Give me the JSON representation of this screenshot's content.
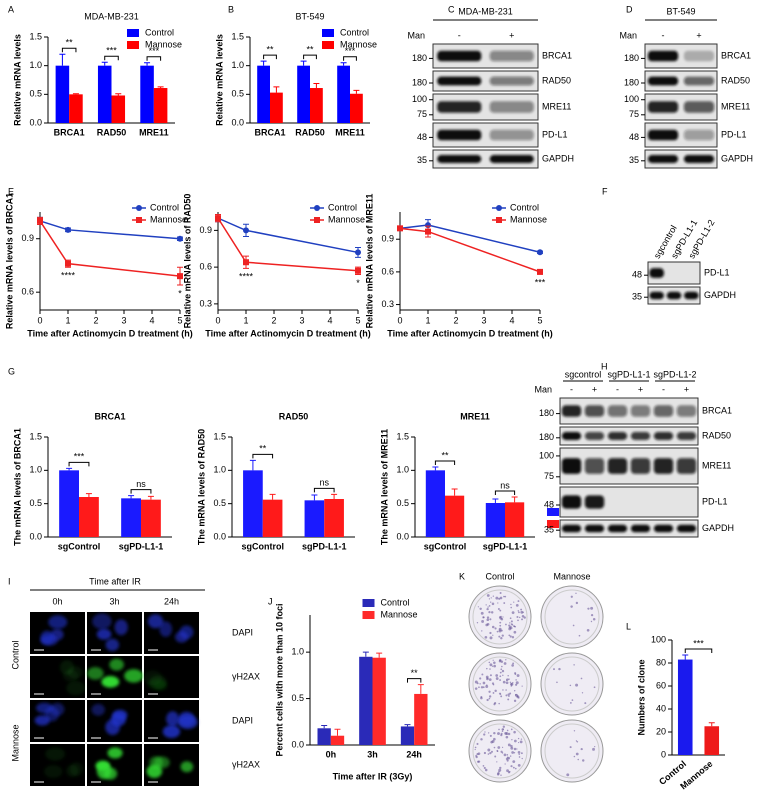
{
  "panel_labels": [
    "A",
    "B",
    "C",
    "D",
    "E",
    "F",
    "G",
    "H",
    "I",
    "J",
    "K",
    "L"
  ],
  "chart_data": [
    {
      "type": "bar",
      "title": "MDA-MB-231",
      "ylabel": "Relative mRNA levels",
      "categories": [
        "BRCA1",
        "RAD50",
        "MRE11"
      ],
      "series": [
        {
          "name": "Control",
          "color": "#0000ff",
          "values": [
            1.0,
            1.0,
            1.0
          ],
          "errors": [
            0.2,
            0.06,
            0.05
          ]
        },
        {
          "name": "Mannose",
          "color": "#ff0000",
          "values": [
            0.5,
            0.48,
            0.61
          ],
          "errors": [
            0.01,
            0.03,
            0.02
          ]
        }
      ],
      "ylim": [
        0,
        1.5
      ],
      "yticks": [
        {
          "value": 0,
          "label": "0.0"
        },
        0.5,
        {
          "value": 1,
          "label": "1.0"
        },
        1.5
      ],
      "significance": [
        "**",
        "***",
        "***"
      ],
      "legend": "upper right"
    },
    {
      "type": "bar",
      "title": "BT-549",
      "ylabel": "Relative mRNA levels",
      "categories": [
        "BRCA1",
        "RAD50",
        "MRE11"
      ],
      "series": [
        {
          "name": "Control",
          "color": "#0000ff",
          "values": [
            1.0,
            1.0,
            1.0
          ],
          "errors": [
            0.08,
            0.08,
            0.05
          ]
        },
        {
          "name": "Mannose",
          "color": "#ff0000",
          "values": [
            0.53,
            0.61,
            0.51
          ],
          "errors": [
            0.1,
            0.08,
            0.06
          ]
        }
      ],
      "ylim": [
        0,
        1.5
      ],
      "yticks": [
        {
          "value": 0,
          "label": "0.0"
        },
        0.5,
        {
          "value": 1,
          "label": "1.0"
        },
        1.5
      ],
      "significance": [
        "**",
        "**",
        "***"
      ],
      "legend": "upper right"
    },
    {
      "type": "line",
      "xlabel": "Time after Actinomycin D treatment (h)",
      "ylabel": "Relative mRNA levels of BRCA1",
      "x": [
        0,
        1,
        5
      ],
      "xlim": [
        0,
        5
      ],
      "xticks": [
        0,
        1,
        2,
        3,
        4,
        5
      ],
      "ylim": [
        0.5,
        1.05
      ],
      "yticks": [
        0.6,
        0.9
      ],
      "series": [
        {
          "name": "Control",
          "color": "#2040c0",
          "marker": "circle",
          "values": [
            1.0,
            0.95,
            0.9
          ],
          "errors": [
            0.02,
            0.01,
            0.01
          ]
        },
        {
          "name": "Mannose",
          "color": "#ee2222",
          "marker": "square",
          "values": [
            1.0,
            0.76,
            0.69
          ],
          "errors": [
            0.02,
            0.02,
            0.05
          ]
        }
      ],
      "significance": [
        null,
        "****",
        "*"
      ],
      "legend": "upper right"
    },
    {
      "type": "line",
      "xlabel": "Time after Actinomycin D treatment (h)",
      "ylabel": "Relative mRNA levels of RAD50",
      "x": [
        0,
        1,
        5
      ],
      "xlim": [
        0,
        5
      ],
      "xticks": [
        0,
        1,
        2,
        3,
        4,
        5
      ],
      "ylim": [
        0.25,
        1.05
      ],
      "yticks": [
        0.3,
        0.6,
        0.9
      ],
      "series": [
        {
          "name": "Control",
          "color": "#2040c0",
          "marker": "circle",
          "values": [
            1.0,
            0.9,
            0.72
          ],
          "errors": [
            0.03,
            0.05,
            0.04
          ]
        },
        {
          "name": "Mannose",
          "color": "#ee2222",
          "marker": "square",
          "values": [
            1.0,
            0.64,
            0.57
          ],
          "errors": [
            0.03,
            0.05,
            0.03
          ]
        }
      ],
      "significance": [
        null,
        "****",
        "*"
      ],
      "legend": "upper right"
    },
    {
      "type": "line",
      "xlabel": "Time after Actinomycin D treatment (h)",
      "ylabel": "Relative mRNA levels of MRE11",
      "x": [
        0,
        1,
        5
      ],
      "xlim": [
        0,
        5
      ],
      "xticks": [
        0,
        1,
        2,
        3,
        4,
        5
      ],
      "ylim": [
        0.25,
        1.15
      ],
      "yticks": [
        0.3,
        0.6,
        0.9
      ],
      "series": [
        {
          "name": "Control",
          "color": "#2040c0",
          "marker": "circle",
          "values": [
            1.0,
            1.03,
            0.78
          ],
          "errors": [
            0.02,
            0.05,
            0.01
          ]
        },
        {
          "name": "Mannose",
          "color": "#ee2222",
          "marker": "square",
          "values": [
            1.0,
            0.97,
            0.6
          ],
          "errors": [
            0.02,
            0.05,
            0.02
          ]
        }
      ],
      "significance": [
        null,
        null,
        "***"
      ],
      "legend": "upper right"
    },
    {
      "type": "bar",
      "title": "BRCA1",
      "ylabel": "The mRNA levels of BRCA1",
      "categories": [
        "sgControl",
        "sgPD-L1-1"
      ],
      "series": [
        {
          "name": "Control",
          "color": "#1a1aff",
          "values": [
            1.0,
            0.58
          ],
          "errors": [
            0.03,
            0.04
          ]
        },
        {
          "name": "Mannose",
          "color": "#ff1a1a",
          "values": [
            0.6,
            0.56
          ],
          "errors": [
            0.05,
            0.05
          ]
        }
      ],
      "ylim": [
        0,
        1.5
      ],
      "yticks": [
        {
          "value": 0,
          "label": "0.0"
        },
        0.5,
        {
          "value": 1,
          "label": "1.0"
        },
        1.5
      ],
      "significance": [
        "***",
        "ns"
      ]
    },
    {
      "type": "bar",
      "title": "RAD50",
      "ylabel": "The mRNA levels of RAD50",
      "categories": [
        "sgControl",
        "sgPD-L1-1"
      ],
      "series": [
        {
          "name": "Control",
          "color": "#1a1aff",
          "values": [
            1.0,
            0.55
          ],
          "errors": [
            0.15,
            0.08
          ]
        },
        {
          "name": "Mannose",
          "color": "#ff1a1a",
          "values": [
            0.56,
            0.57
          ],
          "errors": [
            0.08,
            0.07
          ]
        }
      ],
      "ylim": [
        0,
        1.5
      ],
      "yticks": [
        {
          "value": 0,
          "label": "0.0"
        },
        0.5,
        {
          "value": 1,
          "label": "1.0"
        },
        1.5
      ],
      "significance": [
        "**",
        "ns"
      ]
    },
    {
      "type": "bar",
      "title": "MRE11",
      "ylabel": "The mRNA levels of MRE11",
      "categories": [
        "sgControl",
        "sgPD-L1-1"
      ],
      "series": [
        {
          "name": "Control",
          "color": "#1a1aff",
          "values": [
            1.0,
            0.51
          ],
          "errors": [
            0.05,
            0.06
          ]
        },
        {
          "name": "Mannose",
          "color": "#ff1a1a",
          "values": [
            0.62,
            0.52
          ],
          "errors": [
            0.1,
            0.08
          ]
        }
      ],
      "ylim": [
        0,
        1.5
      ],
      "yticks": [
        {
          "value": 0,
          "label": "0.0"
        },
        0.5,
        {
          "value": 1,
          "label": "1.0"
        },
        1.5
      ],
      "significance": [
        "**",
        "ns"
      ],
      "legend": "right"
    },
    {
      "type": "bar",
      "xlabel": "Time after IR (3Gy)",
      "ylabel": "Percent cells with more than 10 foci",
      "categories": [
        "0h",
        "3h",
        "24h"
      ],
      "series": [
        {
          "name": "Control",
          "color": "#2a2ab8",
          "values": [
            0.18,
            0.95,
            0.2
          ],
          "errors": [
            0.03,
            0.05,
            0.02
          ]
        },
        {
          "name": "Mannose",
          "color": "#ff2a2a",
          "values": [
            0.1,
            0.94,
            0.55
          ],
          "errors": [
            0.07,
            0.05,
            0.1
          ]
        }
      ],
      "ylim": [
        0,
        1.4
      ],
      "yticks": [
        {
          "value": 0,
          "label": "0.0"
        },
        0.5,
        {
          "value": 1,
          "label": "1.0"
        }
      ],
      "significance": [
        null,
        null,
        "**"
      ],
      "legend": "upper center"
    },
    {
      "type": "bar",
      "ylabel": "Numbers of clone",
      "categories": [
        "Control",
        "Mannose"
      ],
      "values": [
        83,
        25
      ],
      "errors": [
        4,
        3
      ],
      "colors": [
        "#1a1aee",
        "#ee1a1a"
      ],
      "ylim": [
        0,
        100
      ],
      "yticks": [
        0,
        20,
        40,
        60,
        80,
        100
      ],
      "significance": "***"
    }
  ],
  "blots": [
    {
      "title": "MDA-MB-231",
      "treatment": "Man",
      "lanes": [
        "-",
        "+"
      ],
      "rows": [
        {
          "label": "BRCA1",
          "markers": [
            180
          ]
        },
        {
          "label": "RAD50",
          "markers": [
            180
          ]
        },
        {
          "label": "MRE11",
          "markers": [
            100,
            75
          ]
        },
        {
          "label": "PD-L1",
          "markers": [
            48
          ]
        },
        {
          "label": "GAPDH",
          "markers": [
            35
          ]
        }
      ]
    },
    {
      "title": "BT-549",
      "treatment": "Man",
      "lanes": [
        "-",
        "+"
      ],
      "rows": [
        {
          "label": "BRCA1",
          "markers": [
            180
          ]
        },
        {
          "label": "RAD50",
          "markers": [
            180
          ]
        },
        {
          "label": "MRE11",
          "markers": [
            100,
            75
          ]
        },
        {
          "label": "PD-L1",
          "markers": [
            48
          ]
        },
        {
          "label": "GAPDH",
          "markers": [
            35
          ]
        }
      ]
    },
    {
      "lanes": [
        "sgcontrol",
        "sgPD-L1-1",
        "sgPD-L1-2"
      ],
      "rows": [
        {
          "label": "PD-L1",
          "markers": [
            48
          ]
        },
        {
          "label": "GAPDH",
          "markers": [
            35
          ]
        }
      ]
    },
    {
      "groups": [
        "sgcontrol",
        "sgPD-L1-1",
        "sgPD-L1-2"
      ],
      "treatment": "Man",
      "lanes": [
        "-",
        "+",
        "-",
        "+",
        "-",
        "+"
      ],
      "rows": [
        {
          "label": "BRCA1",
          "markers": [
            180
          ]
        },
        {
          "label": "RAD50",
          "markers": [
            180
          ]
        },
        {
          "label": "MRE11",
          "markers": [
            100,
            75
          ]
        },
        {
          "label": "PD-L1",
          "markers": [
            48
          ]
        },
        {
          "label": "GAPDH",
          "markers": [
            35
          ]
        }
      ]
    }
  ],
  "microscopy": {
    "header": "Time after IR",
    "columns": [
      "0h",
      "3h",
      "24h"
    ],
    "groups": [
      {
        "label": "Control",
        "channels": [
          "DAPI",
          "γH2AX"
        ]
      },
      {
        "label": "Mannose",
        "channels": [
          "DAPI",
          "γH2AX"
        ]
      }
    ]
  },
  "colony": {
    "columns": [
      "Control",
      "Mannose"
    ]
  }
}
